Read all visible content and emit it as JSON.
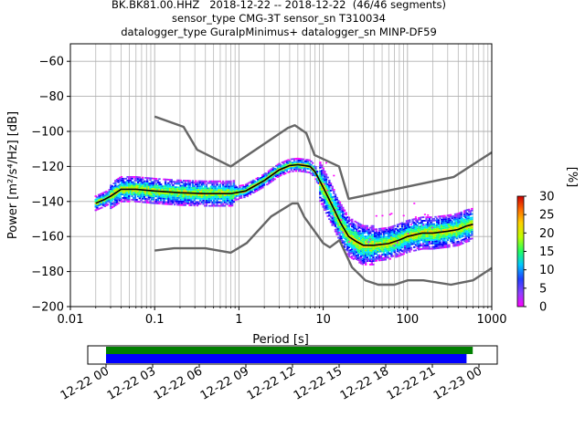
{
  "header": {
    "title_line1": "BK.BK81.00.HHZ   2018-12-22 -- 2018-12-22  (46/46 segments)",
    "title_line2": "sensor_type CMG-3T sensor_sn T310034",
    "title_line3": "datalogger_type GuralpMinimus+ datalogger_sn MINP-DF59"
  },
  "chart_data": {
    "type": "heatmap",
    "xlabel": "Period [s]",
    "ylabel": "Power [m²/s⁴/Hz] [dB]",
    "x_scale": "log",
    "xlim": [
      0.01,
      1000
    ],
    "ylim": [
      -200,
      -50
    ],
    "x_tick_labels": [
      "0.01",
      "0.1",
      "1",
      "10",
      "100",
      "1000"
    ],
    "y_ticks": [
      -200,
      -180,
      -160,
      -140,
      -120,
      -100,
      -80,
      -60
    ],
    "grid": true,
    "colorbar": {
      "label": "[%]",
      "range": [
        0,
        30
      ],
      "ticks": [
        0,
        5,
        10,
        15,
        20,
        25,
        30
      ]
    },
    "noise_models": {
      "high": {
        "period": [
          0.1,
          0.22,
          0.32,
          0.8,
          3.8,
          4.6,
          6.3,
          7.9,
          15.4,
          20,
          354.8,
          1000
        ],
        "power": [
          -91.5,
          -97.4,
          -110.5,
          -120,
          -98,
          -96.5,
          -101,
          -113.5,
          -120,
          -138.5,
          -126,
          -112
        ]
      },
      "low": {
        "period": [
          0.1,
          0.17,
          0.4,
          0.8,
          1.24,
          2.4,
          4.3,
          5,
          6,
          10,
          12,
          15.6,
          21.9,
          31.6,
          45,
          70,
          101,
          154,
          328,
          600,
          1000
        ],
        "power": [
          -168,
          -166.7,
          -166.7,
          -169.2,
          -163.7,
          -148.6,
          -141.1,
          -141.1,
          -149,
          -163.8,
          -166.2,
          -162.1,
          -177.5,
          -185,
          -187.5,
          -187.5,
          -185,
          -185,
          -187.5,
          -185,
          -178
        ]
      }
    },
    "mean_curve": {
      "period": [
        0.02,
        0.025,
        0.03,
        0.04,
        0.06,
        0.1,
        0.2,
        0.4,
        0.8,
        1.2,
        2,
        3,
        4,
        5,
        6,
        7,
        8,
        10,
        13,
        16,
        20,
        25,
        30,
        40,
        60,
        80,
        100,
        150,
        200,
        300,
        400,
        500,
        600
      ],
      "power": [
        -141,
        -139,
        -137,
        -133,
        -133,
        -134,
        -135,
        -135.5,
        -135.5,
        -134,
        -128,
        -122,
        -119.5,
        -119,
        -119.5,
        -120,
        -123,
        -132,
        -143,
        -152,
        -160,
        -163,
        -165,
        -165,
        -164,
        -162,
        -160,
        -158,
        -158,
        -157,
        -156,
        -154,
        -153
      ]
    },
    "time_coverage": {
      "tick_labels": [
        "12-22 00",
        "12-22 03",
        "12-22 06",
        "12-22 09",
        "12-22 12",
        "12-22 15",
        "12-22 18",
        "12-22 21",
        "12-23 00"
      ],
      "data_hours": [
        0,
        23.6
      ],
      "used_hours": [
        0,
        23.2
      ]
    }
  }
}
